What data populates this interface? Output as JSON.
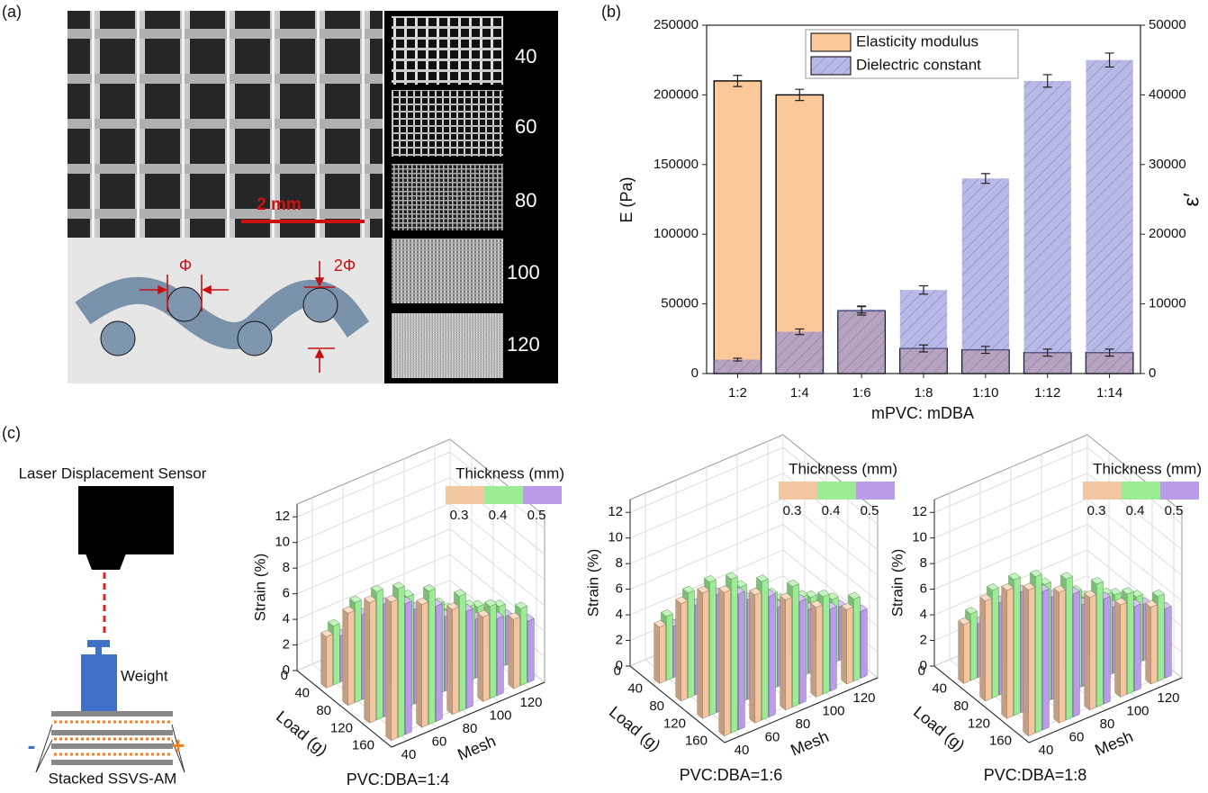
{
  "panel_labels": [
    "(a)",
    "(b)",
    "(c)"
  ],
  "panel_a": {
    "scale_bar": "2 mm",
    "diameter": "Φ",
    "double_diameter": "2Φ",
    "mesh_labels": [
      "40",
      "60",
      "80",
      "100",
      "120"
    ]
  },
  "panel_c": {
    "sensor": "Laser Displacement Sensor",
    "weight": "Weight",
    "stack": "Stacked SSVS-AM",
    "minus": "-",
    "plus": "+"
  },
  "chart_data": [
    {
      "type": "bar",
      "x_label": "mPVC: mDBA",
      "y_label": "E (Pa)",
      "y2_label": "ε′",
      "categories": [
        "1:2",
        "1:4",
        "1:6",
        "1:8",
        "1:10",
        "1:12",
        "1:14"
      ],
      "series": [
        {
          "name": "Elasticity modulus",
          "color": "#fbc899",
          "values": [
            210000,
            200000,
            45000,
            18000,
            17000,
            15000,
            15000
          ],
          "errors": [
            4000,
            4000,
            3000,
            2500,
            2500,
            2500,
            2500
          ]
        },
        {
          "name": "Dielectric constant",
          "color": "#8a8ad8",
          "axis": "y2",
          "values": [
            2000,
            6000,
            9200,
            12000,
            28000,
            42000,
            45000
          ],
          "errors": [
            200,
            400,
            500,
            600,
            700,
            900,
            1000
          ]
        }
      ],
      "ylim": [
        0,
        250000
      ],
      "yticks": [
        0,
        50000,
        100000,
        150000,
        200000,
        250000
      ],
      "y2lim": [
        0,
        50000
      ],
      "y2ticks": [
        0,
        10000,
        20000,
        30000,
        40000,
        50000
      ],
      "legend": "top"
    },
    {
      "type": "bar3d",
      "title": "PVC:DBA=1:4",
      "x_label": "Load (g)",
      "y_label": "Mesh",
      "z_label": "Strain (%)",
      "legend_title": "Thickness (mm)",
      "loads": [
        40,
        80,
        120,
        160
      ],
      "meshes": [
        40,
        60,
        80,
        100,
        120
      ],
      "xlim": [
        0,
        175
      ],
      "ylim": [
        30,
        130
      ],
      "zlim": [
        0,
        13
      ],
      "xticks": [
        0,
        40,
        80,
        120,
        160
      ],
      "yticks": [
        40,
        60,
        80,
        100,
        120
      ],
      "zticks": [
        0,
        2,
        4,
        6,
        8,
        10,
        12
      ],
      "series": [
        {
          "name": "0.3",
          "color": "#f3c6a2",
          "values": [
            [
              4.0,
              3.2,
              2.6,
              2.0,
              1.6
            ],
            [
              7.2,
              5.8,
              4.6,
              3.6,
              3.0
            ],
            [
              9.4,
              8.0,
              6.4,
              5.2,
              4.2
            ],
            [
              10.8,
              9.6,
              8.2,
              6.6,
              5.4
            ]
          ]
        },
        {
          "name": "0.4",
          "color": "#9cec96",
          "values": [
            [
              4.6,
              3.8,
              3.0,
              2.4,
              1.9
            ],
            [
              7.8,
              6.4,
              5.2,
              4.2,
              3.4
            ],
            [
              10.0,
              8.6,
              7.0,
              5.8,
              4.8
            ],
            [
              11.6,
              10.4,
              9.0,
              7.2,
              6.0
            ]
          ]
        },
        {
          "name": "0.5",
          "color": "#bb9ceb",
          "values": [
            [
              3.6,
              2.8,
              2.2,
              1.8,
              1.4
            ],
            [
              6.6,
              5.2,
              4.2,
              3.2,
              2.6
            ],
            [
              8.8,
              7.4,
              5.8,
              4.6,
              3.8
            ],
            [
              10.2,
              9.0,
              7.6,
              6.0,
              4.8
            ]
          ]
        }
      ]
    },
    {
      "type": "bar3d",
      "title": "PVC:DBA=1:6",
      "x_label": "Load (g)",
      "y_label": "Mesh",
      "z_label": "Strain (%)",
      "legend_title": "Thickness (mm)",
      "loads": [
        40,
        80,
        120,
        160
      ],
      "meshes": [
        40,
        60,
        80,
        100,
        120
      ],
      "xlim": [
        0,
        175
      ],
      "ylim": [
        30,
        130
      ],
      "zlim": [
        0,
        13
      ],
      "xticks": [
        0,
        40,
        80,
        120,
        160
      ],
      "yticks": [
        40,
        60,
        80,
        100,
        120
      ],
      "zticks": [
        0,
        2,
        4,
        6,
        8,
        10,
        12
      ],
      "series": [
        {
          "name": "0.3",
          "color": "#f3c6a2",
          "values": [
            [
              4.4,
              3.6,
              2.8,
              2.2,
              1.8
            ],
            [
              7.6,
              6.2,
              5.0,
              4.0,
              3.2
            ],
            [
              9.8,
              8.4,
              6.8,
              5.6,
              4.6
            ],
            [
              11.2,
              10.0,
              8.6,
              7.0,
              5.8
            ]
          ]
        },
        {
          "name": "0.4",
          "color": "#9cec96",
          "values": [
            [
              5.0,
              4.2,
              3.4,
              2.6,
              2.1
            ],
            [
              8.2,
              6.8,
              5.6,
              4.6,
              3.8
            ],
            [
              10.4,
              9.0,
              7.4,
              6.2,
              5.0
            ],
            [
              12.0,
              10.8,
              9.4,
              7.6,
              6.4
            ]
          ]
        },
        {
          "name": "0.5",
          "color": "#bb9ceb",
          "values": [
            [
              4.0,
              3.2,
              2.6,
              2.0,
              1.6
            ],
            [
              7.0,
              5.6,
              4.6,
              3.6,
              2.9
            ],
            [
              9.2,
              7.8,
              6.2,
              5.0,
              4.2
            ],
            [
              10.6,
              9.4,
              8.0,
              6.4,
              5.2
            ]
          ]
        }
      ]
    },
    {
      "type": "bar3d",
      "title": "PVC:DBA=1:8",
      "x_label": "Load (g)",
      "y_label": "Mesh",
      "z_label": "Strain (%)",
      "legend_title": "Thickness (mm)",
      "loads": [
        40,
        80,
        120,
        160
      ],
      "meshes": [
        40,
        60,
        80,
        100,
        120
      ],
      "xlim": [
        0,
        175
      ],
      "ylim": [
        30,
        130
      ],
      "zlim": [
        0,
        13
      ],
      "xticks": [
        0,
        40,
        80,
        120,
        160
      ],
      "yticks": [
        40,
        60,
        80,
        100,
        120
      ],
      "zticks": [
        0,
        2,
        4,
        6,
        8,
        10,
        12
      ],
      "series": [
        {
          "name": "0.3",
          "color": "#f3c6a2",
          "values": [
            [
              4.6,
              3.8,
              3.0,
              2.4,
              2.0
            ],
            [
              7.8,
              6.4,
              5.2,
              4.2,
              3.4
            ],
            [
              10.0,
              8.6,
              7.0,
              5.8,
              4.8
            ],
            [
              11.4,
              10.2,
              8.8,
              7.2,
              6.0
            ]
          ]
        },
        {
          "name": "0.4",
          "color": "#9cec96",
          "values": [
            [
              5.2,
              4.4,
              3.6,
              2.8,
              2.3
            ],
            [
              8.4,
              7.0,
              5.8,
              4.8,
              4.0
            ],
            [
              10.6,
              9.2,
              7.6,
              6.4,
              5.2
            ],
            [
              12.2,
              11.0,
              9.6,
              7.8,
              6.6
            ]
          ]
        },
        {
          "name": "0.5",
          "color": "#bb9ceb",
          "values": [
            [
              4.2,
              3.4,
              2.8,
              2.2,
              1.8
            ],
            [
              7.2,
              5.8,
              4.8,
              3.8,
              3.1
            ],
            [
              9.4,
              8.0,
              6.4,
              5.2,
              4.4
            ],
            [
              10.8,
              9.6,
              8.2,
              6.6,
              5.4
            ]
          ]
        }
      ]
    }
  ]
}
